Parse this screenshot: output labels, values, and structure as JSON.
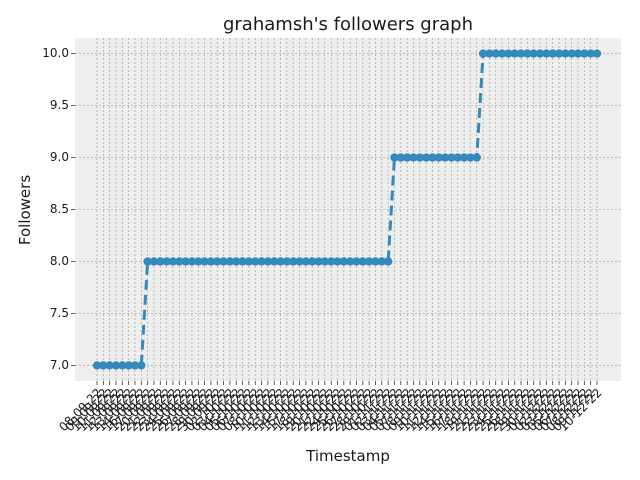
{
  "chart_data": {
    "type": "line",
    "title": "grahamsh's followers graph",
    "xlabel": "Timestamp",
    "ylabel": "Followers",
    "ylim": [
      6.85,
      10.15
    ],
    "yticks": [
      "7.0",
      "7.5",
      "8.0",
      "8.5",
      "9.0",
      "9.5",
      "10.0"
    ],
    "grid": true,
    "style": {
      "line_color": "#348abd",
      "line_style": "dashed",
      "marker": "circle",
      "background": "#eeeeee",
      "grid_color": "#999999"
    },
    "x": [
      "08-09-22",
      "09-09-22",
      "10-09-22",
      "11-09-22",
      "12-09-22",
      "13-09-22",
      "14-09-22",
      "16-09-22",
      "17-09-22",
      "20-09-22",
      "21-09-22",
      "22-09-22",
      "23-09-22",
      "24-09-22",
      "25-09-22",
      "26-09-22",
      "27-09-22",
      "28-09-22",
      "29-09-22",
      "30-09-22",
      "02-10-22",
      "03-10-22",
      "04-10-22",
      "05-10-22",
      "06-10-22",
      "07-10-22",
      "08-10-22",
      "10-10-22",
      "11-10-22",
      "12-10-22",
      "13-10-22",
      "14-10-22",
      "15-10-22",
      "17-10-22",
      "18-10-22",
      "19-10-22",
      "20-10-22",
      "21-10-22",
      "22-10-22",
      "24-10-22",
      "25-10-22",
      "26-10-22",
      "27-10-22",
      "28-10-22",
      "29-10-22",
      "01-11-22",
      "02-11-22",
      "03-11-22",
      "04-11-22",
      "05-11-22",
      "07-11-22",
      "08-11-22",
      "09-11-22",
      "10-11-22",
      "11-11-22",
      "12-11-22",
      "14-11-22",
      "15-11-22",
      "16-11-22",
      "17-11-22",
      "18-11-22",
      "19-11-22",
      "21-11-22",
      "22-11-22",
      "23-11-22",
      "24-11-22",
      "25-11-22",
      "26-11-22",
      "28-11-22",
      "29-11-22",
      "30-11-22",
      "01-12-22",
      "02-12-22",
      "03-12-22",
      "05-12-22",
      "06-12-22",
      "07-12-22",
      "08-12-22",
      "09-12-22",
      "10-12-22"
    ],
    "series": [
      {
        "values": [
          7,
          7,
          7,
          7,
          7,
          7,
          7,
          7,
          8,
          8,
          8,
          8,
          8,
          8,
          8,
          8,
          8,
          8,
          8,
          8,
          8,
          8,
          8,
          8,
          8,
          8,
          8,
          8,
          8,
          8,
          8,
          8,
          8,
          8,
          8,
          8,
          8,
          8,
          8,
          8,
          8,
          8,
          8,
          8,
          8,
          8,
          8,
          9,
          9,
          9,
          9,
          9,
          9,
          9,
          9,
          9,
          9,
          9,
          9,
          9,
          9,
          10,
          10,
          10,
          10,
          10,
          10,
          10,
          10,
          10,
          10,
          10,
          10,
          10,
          10,
          10,
          10,
          10,
          10,
          10
        ]
      }
    ]
  }
}
